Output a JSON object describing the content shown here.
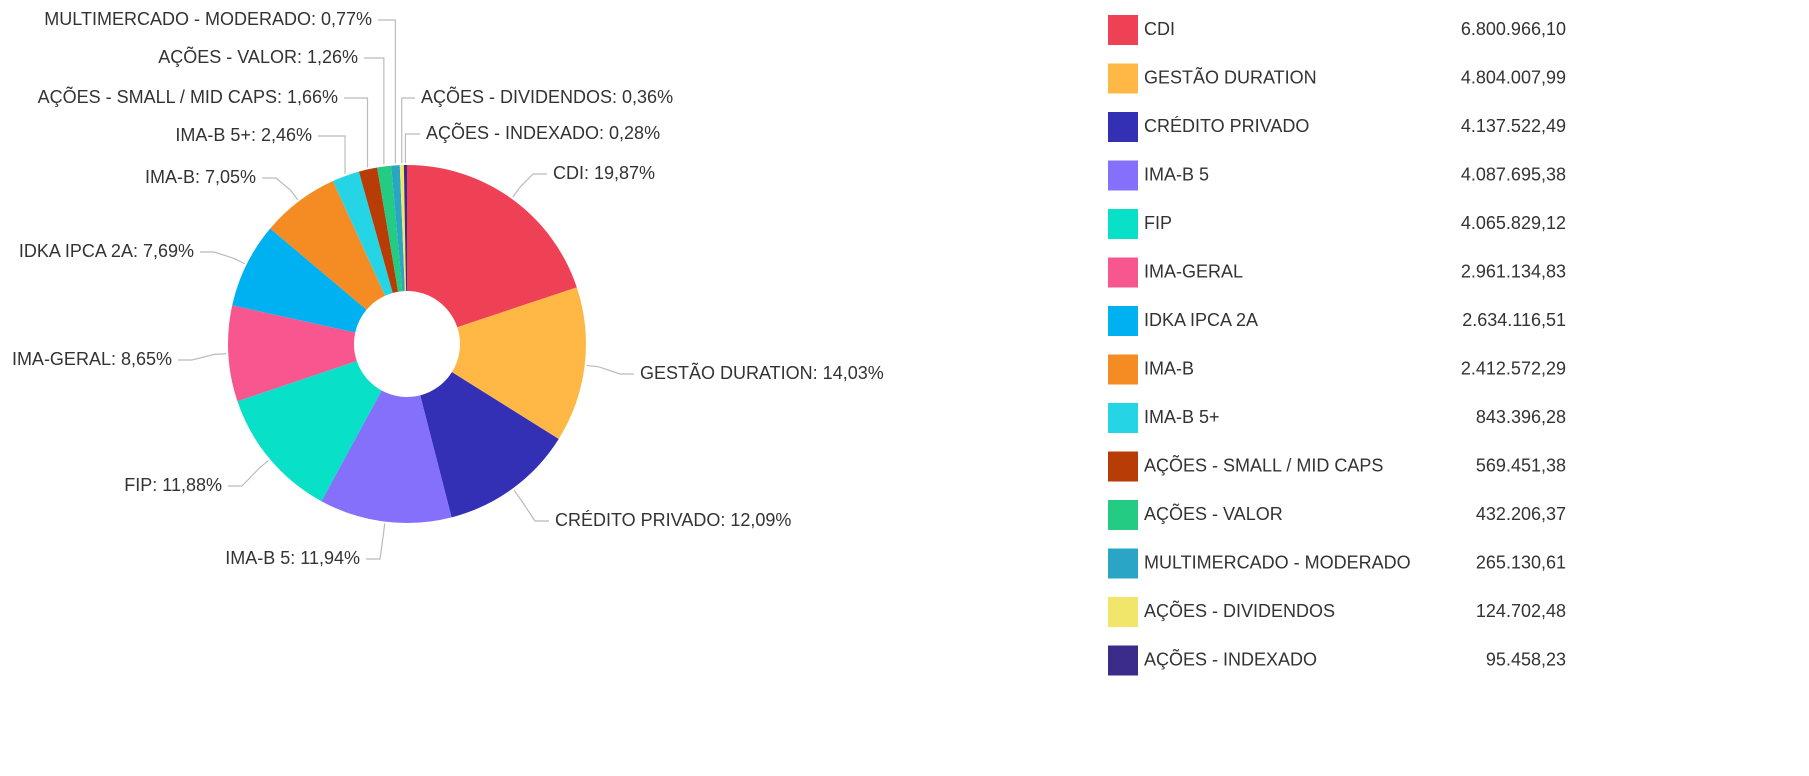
{
  "chart_data": {
    "type": "donut",
    "categories": [
      "CDI",
      "GESTÃO DURATION",
      "CRÉDITO PRIVADO",
      "IMA-B 5",
      "FIP",
      "IMA-GERAL",
      "IDKA IPCA 2A",
      "IMA-B",
      "IMA-B 5+",
      "AÇÕES - SMALL / MID CAPS",
      "AÇÕES - VALOR",
      "MULTIMERCADO - MODERADO",
      "AÇÕES - DIVIDENDOS",
      "AÇÕES - INDEXADO"
    ],
    "values": [
      19.87,
      14.03,
      12.09,
      11.94,
      11.88,
      8.65,
      7.69,
      7.05,
      2.46,
      1.66,
      1.26,
      0.77,
      0.36,
      0.28
    ],
    "value_labels": [
      "CDI: 19,87%",
      "GESTÃO DURATION: 14,03%",
      "CRÉDITO PRIVADO: 12,09%",
      "IMA-B 5: 11,94%",
      "FIP: 11,88%",
      "IMA-GERAL: 8,65%",
      "IDKA IPCA 2A: 7,69%",
      "IMA-B: 7,05%",
      "IMA-B 5+: 2,46%",
      "AÇÕES - SMALL / MID CAPS: 1,66%",
      "AÇÕES - VALOR: 1,26%",
      "MULTIMERCADO - MODERADO: 0,77%",
      "AÇÕES - DIVIDENDOS: 0,36%",
      "AÇÕES - INDEXADO: 0,28%"
    ],
    "colors": [
      "#ef4155",
      "#ffb846",
      "#3330b5",
      "#8470fb",
      "#08e0c7",
      "#f7578e",
      "#00b1f2",
      "#f58b23",
      "#26d5e5",
      "#b83c06",
      "#24cb83",
      "#2aa5c5",
      "#f1e56a",
      "#3b2b8b"
    ],
    "legend_values": [
      "6.800.966,10",
      "4.804.007,99",
      "4.137.522,49",
      "4.087.695,38",
      "4.065.829,12",
      "2.961.134,83",
      "2.634.116,51",
      "2.412.572,29",
      "843.396,28",
      "569.451,38",
      "432.206,37",
      "265.130,61",
      "124.702,48",
      "95.458,23"
    ]
  }
}
